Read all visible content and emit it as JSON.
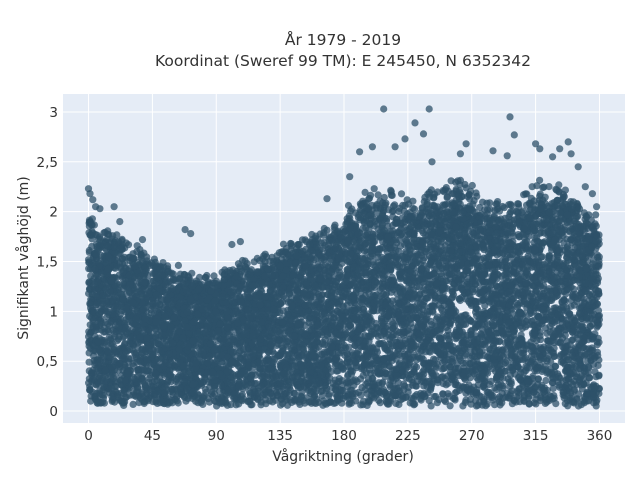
{
  "chart_data": {
    "type": "scatter",
    "title_line1": "År 1979 - 2019",
    "title_line2": "Koordinat (Sweref 99 TM): E 245450, N 6352342",
    "xlabel": "Vågriktning (grader)",
    "ylabel": "Signifikant våghöjd (m)",
    "xlim": [
      -18,
      378
    ],
    "ylim": [
      -0.12,
      3.18
    ],
    "x_ticks": [
      0,
      45,
      90,
      135,
      180,
      225,
      270,
      315,
      360
    ],
    "x_tick_labels": [
      "0",
      "45",
      "90",
      "135",
      "180",
      "225",
      "270",
      "315",
      "360"
    ],
    "y_ticks": [
      0,
      0.5,
      1,
      1.5,
      2,
      2.5,
      3
    ],
    "y_tick_labels": [
      "0",
      "0,5",
      "1",
      "1,5",
      "2",
      "2,5",
      "3"
    ],
    "grid": true,
    "colors": {
      "plot_bg": "#e5ecf6",
      "grid": "#ffffff",
      "marker": "#2e5269"
    },
    "envelope": {
      "direction": [
        0,
        15,
        30,
        45,
        60,
        75,
        90,
        105,
        120,
        135,
        150,
        165,
        180,
        195,
        210,
        225,
        240,
        255,
        270,
        285,
        300,
        315,
        330,
        345,
        360
      ],
      "max_height": [
        2.0,
        1.85,
        1.7,
        1.55,
        1.45,
        1.4,
        1.45,
        1.5,
        1.55,
        1.65,
        1.75,
        1.85,
        2.0,
        2.3,
        2.25,
        2.15,
        2.2,
        2.35,
        2.25,
        2.1,
        2.1,
        2.3,
        2.25,
        2.15,
        1.95
      ]
    },
    "outliers": [
      {
        "x": 0,
        "y": 2.23
      },
      {
        "x": 1,
        "y": 2.18
      },
      {
        "x": 3,
        "y": 2.12
      },
      {
        "x": 5,
        "y": 2.05
      },
      {
        "x": 8,
        "y": 2.03
      },
      {
        "x": 18,
        "y": 2.05
      },
      {
        "x": 22,
        "y": 1.9
      },
      {
        "x": 38,
        "y": 1.72
      },
      {
        "x": 68,
        "y": 1.82
      },
      {
        "x": 72,
        "y": 1.78
      },
      {
        "x": 101,
        "y": 1.67
      },
      {
        "x": 107,
        "y": 1.7
      },
      {
        "x": 168,
        "y": 2.13
      },
      {
        "x": 184,
        "y": 2.35
      },
      {
        "x": 191,
        "y": 2.6
      },
      {
        "x": 200,
        "y": 2.65
      },
      {
        "x": 208,
        "y": 3.03
      },
      {
        "x": 216,
        "y": 2.65
      },
      {
        "x": 223,
        "y": 2.73
      },
      {
        "x": 230,
        "y": 2.89
      },
      {
        "x": 236,
        "y": 2.78
      },
      {
        "x": 240,
        "y": 3.03
      },
      {
        "x": 242,
        "y": 2.5
      },
      {
        "x": 262,
        "y": 2.58
      },
      {
        "x": 266,
        "y": 2.68
      },
      {
        "x": 285,
        "y": 2.61
      },
      {
        "x": 295,
        "y": 2.56
      },
      {
        "x": 297,
        "y": 2.95
      },
      {
        "x": 300,
        "y": 2.77
      },
      {
        "x": 315,
        "y": 2.68
      },
      {
        "x": 318,
        "y": 2.63
      },
      {
        "x": 327,
        "y": 2.55
      },
      {
        "x": 332,
        "y": 2.63
      },
      {
        "x": 338,
        "y": 2.7
      },
      {
        "x": 340,
        "y": 2.58
      },
      {
        "x": 345,
        "y": 2.45
      },
      {
        "x": 350,
        "y": 2.25
      },
      {
        "x": 355,
        "y": 2.18
      },
      {
        "x": 358,
        "y": 2.05
      }
    ]
  }
}
